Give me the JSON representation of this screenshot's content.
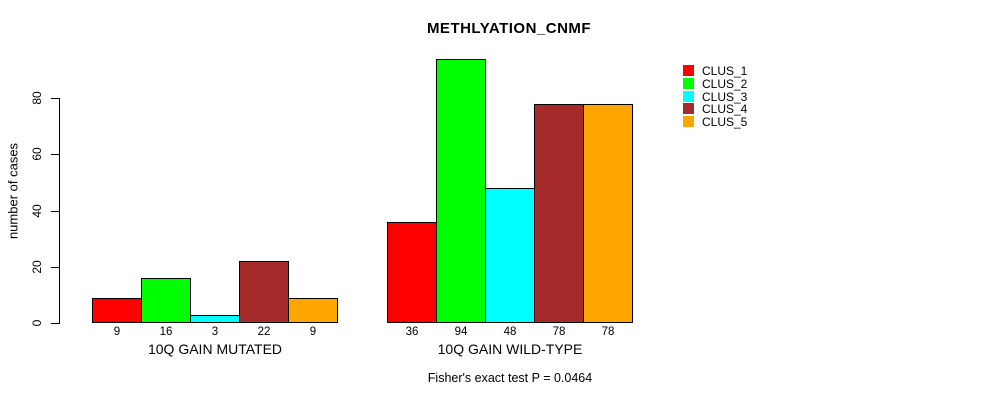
{
  "chart_data": {
    "type": "bar",
    "title": "METHLYATION_CNMF",
    "ylabel": "number of cases",
    "xlabel": "",
    "yticks": [
      0,
      20,
      40,
      60,
      80
    ],
    "ylim": [
      0,
      98
    ],
    "grid": false,
    "legend_position": "right-outside",
    "categories": [
      "10Q GAIN MUTATED",
      "10Q GAIN WILD-TYPE"
    ],
    "series": [
      {
        "name": "CLUS_1",
        "color": "#FF0000",
        "values": [
          9,
          36
        ]
      },
      {
        "name": "CLUS_2",
        "color": "#00FF00",
        "values": [
          16,
          94
        ]
      },
      {
        "name": "CLUS_3",
        "color": "#00FFFF",
        "values": [
          3,
          48
        ]
      },
      {
        "name": "CLUS_4",
        "color": "#A52A2A",
        "values": [
          22,
          78
        ]
      },
      {
        "name": "CLUS_5",
        "color": "#FFA500",
        "values": [
          9,
          78
        ]
      }
    ],
    "bar_value_labels": [
      [
        9,
        16,
        3,
        22,
        9
      ],
      [
        36,
        94,
        48,
        78,
        78
      ]
    ],
    "annotation": "Fisher's exact test P = 0.0464",
    "axis_color": "#000000",
    "bar_border_color": "#000000"
  }
}
